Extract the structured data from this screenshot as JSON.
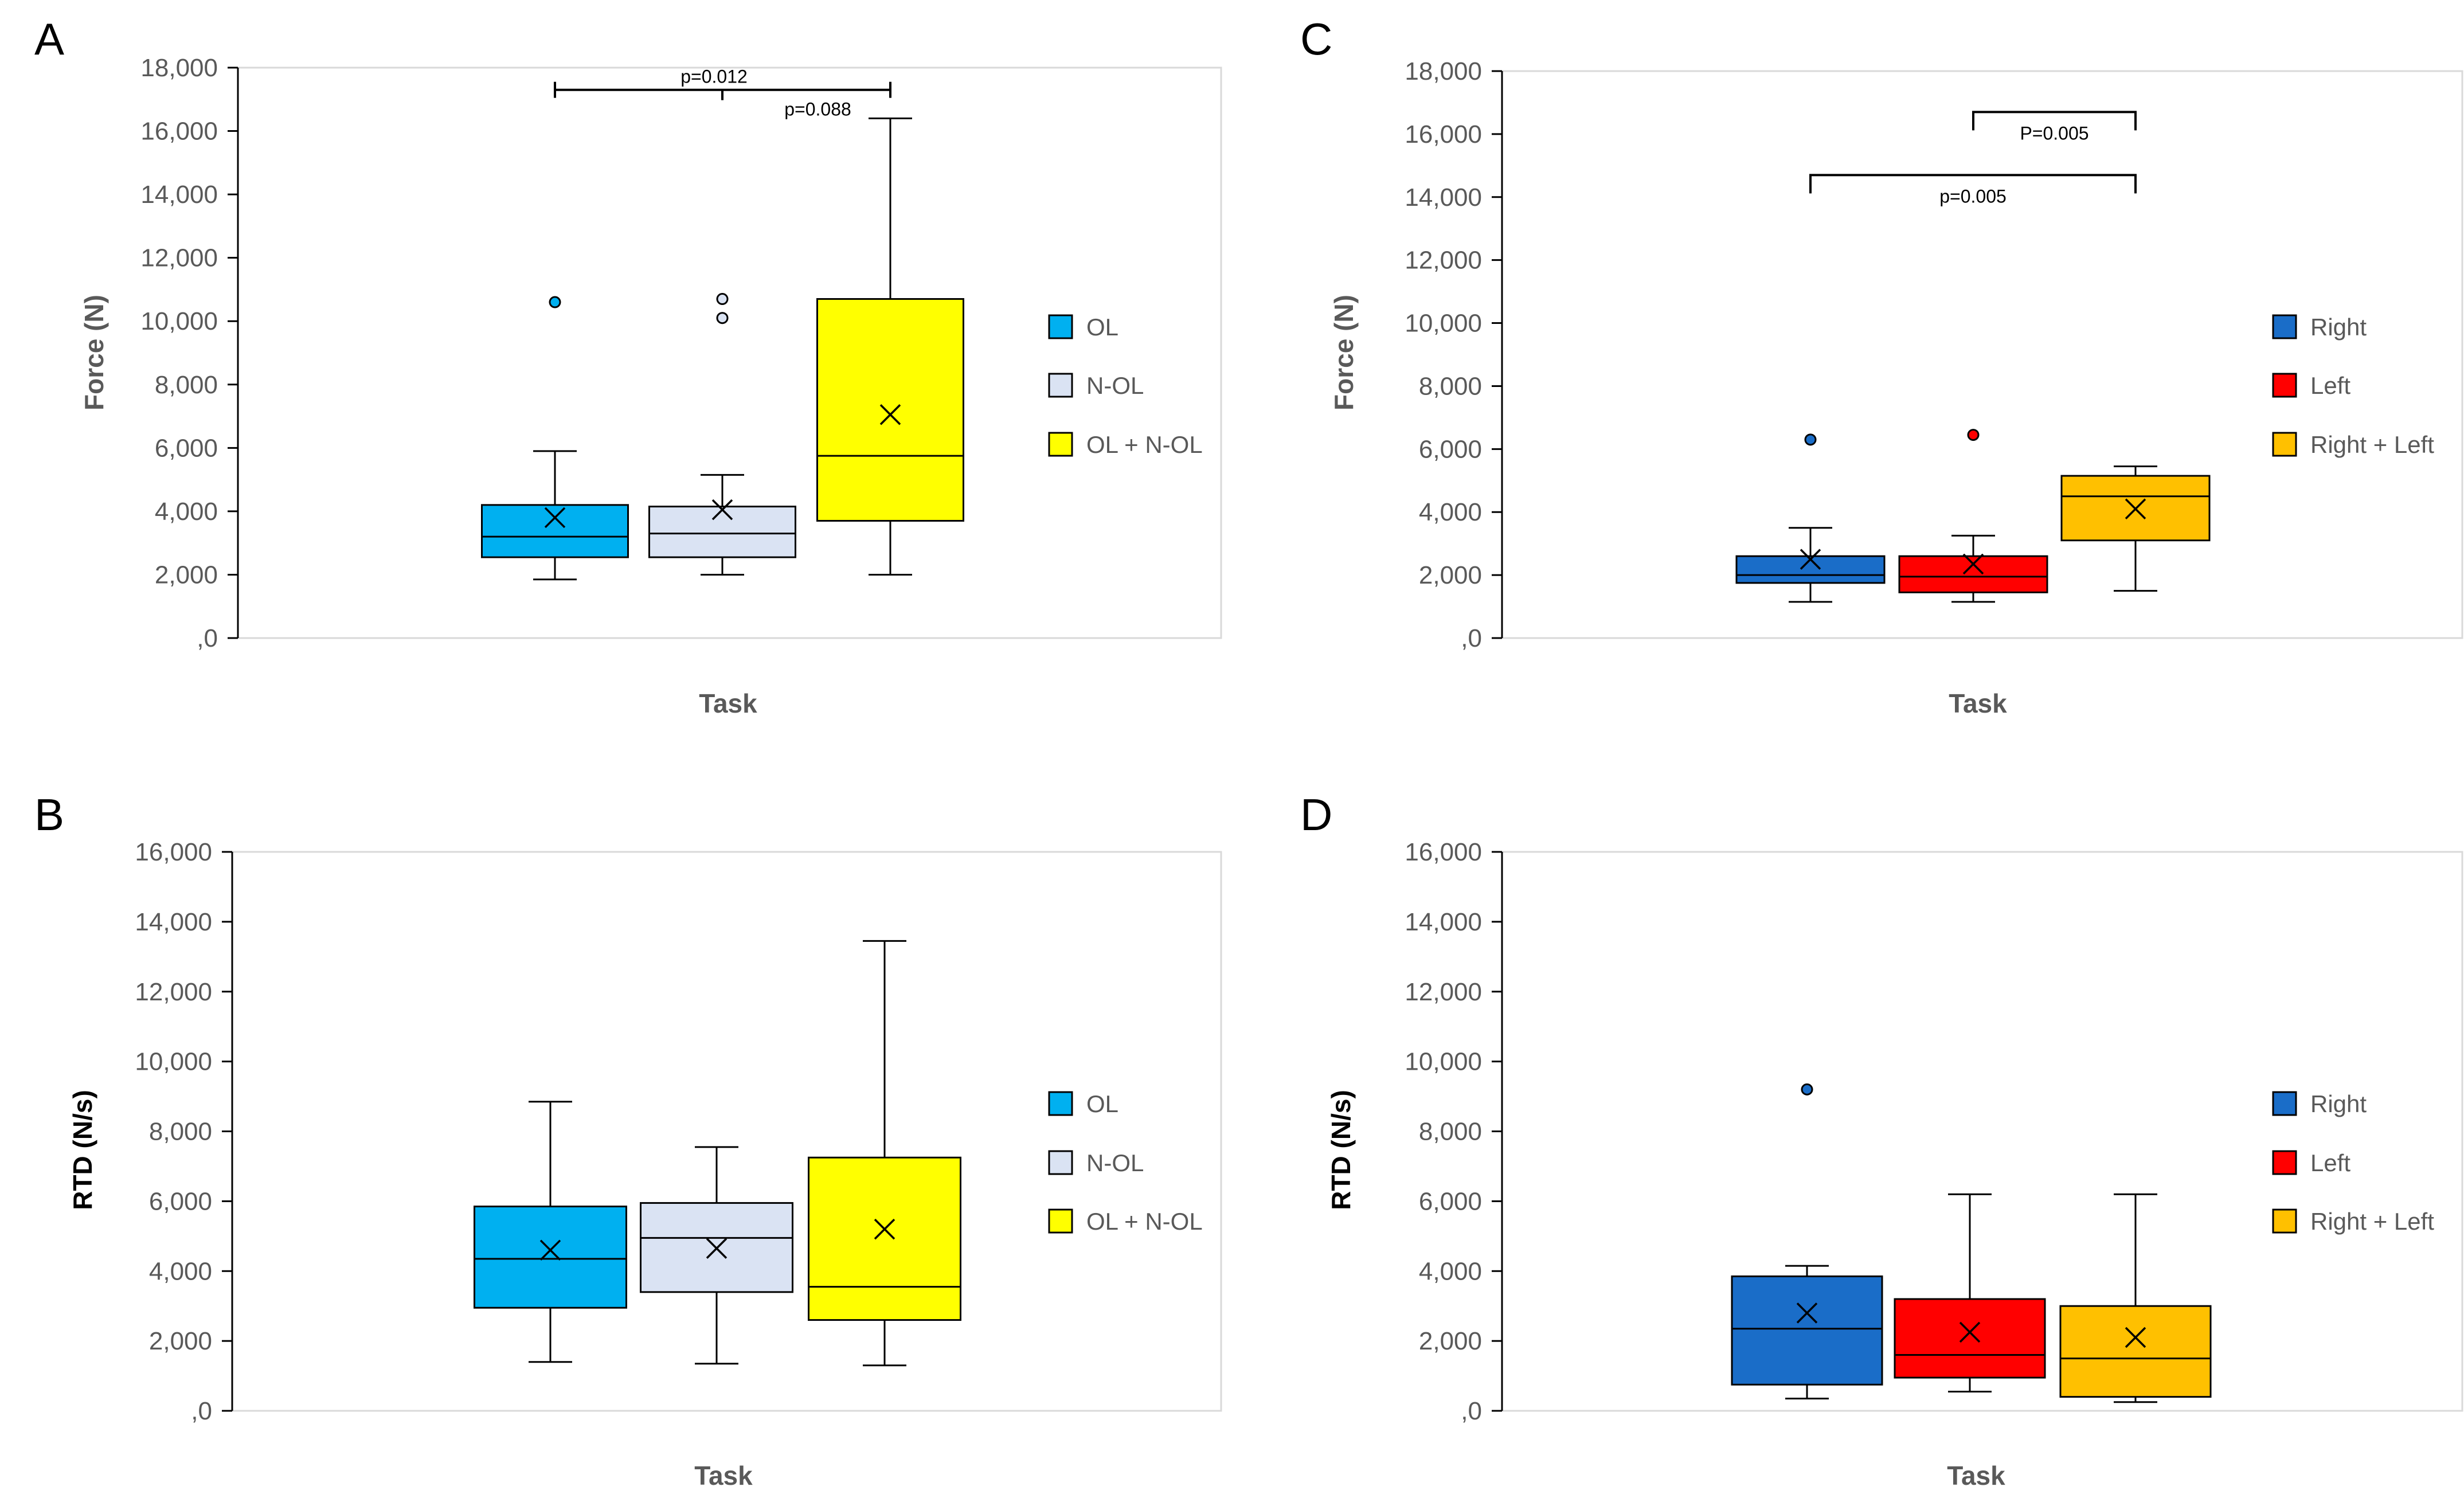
{
  "chart_data": [
    {
      "panel": "A",
      "type": "box",
      "xlabel": "Task",
      "ylabel": "Force (N)",
      "ylim": [
        0,
        18000
      ],
      "yticks": [
        ",0",
        "2,000",
        "4,000",
        "6,000",
        "8,000",
        "10,000",
        "12,000",
        "14,000",
        "16,000",
        "18,000"
      ],
      "grid": false,
      "legend_position": "right",
      "series": [
        {
          "name": "OL",
          "color": "#00b0f0",
          "min": 1850,
          "q1": 2550,
          "median": 3200,
          "q3": 4200,
          "max": 5900,
          "mean": 3800,
          "outliers": [
            10600
          ]
        },
        {
          "name": "N-OL",
          "color": "#dae3f3",
          "min": 2000,
          "q1": 2550,
          "median": 3300,
          "q3": 4150,
          "max": 5150,
          "mean": 4050,
          "outliers": [
            10100,
            10700
          ]
        },
        {
          "name": "OL + N-OL",
          "color": "#ffff00",
          "min": 2000,
          "q1": 3700,
          "median": 5750,
          "q3": 10700,
          "max": 16400,
          "mean": 7050,
          "outliers": []
        }
      ],
      "annotations": [
        {
          "text": "p=0.012",
          "from": 0,
          "to": 2,
          "y": 17300
        },
        {
          "text": "p=0.088",
          "from": 1,
          "to": 2,
          "y": 17300
        }
      ]
    },
    {
      "panel": "B",
      "type": "box",
      "xlabel": "Task",
      "ylabel": "RTD (N/s)",
      "ylim": [
        0,
        16000
      ],
      "yticks": [
        ",0",
        "2,000",
        "4,000",
        "6,000",
        "8,000",
        "10,000",
        "12,000",
        "14,000",
        "16,000"
      ],
      "grid": false,
      "legend_position": "right",
      "series": [
        {
          "name": "OL",
          "color": "#00b0f0",
          "min": 1400,
          "q1": 2950,
          "median": 4350,
          "q3": 5850,
          "max": 8850,
          "mean": 4600,
          "outliers": []
        },
        {
          "name": "N-OL",
          "color": "#dae3f3",
          "min": 1350,
          "q1": 3400,
          "median": 4950,
          "q3": 5950,
          "max": 7550,
          "mean": 4650,
          "outliers": []
        },
        {
          "name": "OL + N-OL",
          "color": "#ffff00",
          "min": 1300,
          "q1": 2600,
          "median": 3550,
          "q3": 7250,
          "max": 13450,
          "mean": 5200,
          "outliers": []
        }
      ],
      "annotations": []
    },
    {
      "panel": "C",
      "type": "box",
      "xlabel": "Task",
      "ylabel": "Force (N)",
      "ylim": [
        0,
        18000
      ],
      "yticks": [
        ",0",
        "2,000",
        "4,000",
        "6,000",
        "8,000",
        "10,000",
        "12,000",
        "14,000",
        "16,000",
        "18,000"
      ],
      "grid": false,
      "legend_position": "right",
      "series": [
        {
          "name": "Right",
          "color": "#1a6dc8",
          "min": 1150,
          "q1": 1750,
          "median": 2000,
          "q3": 2600,
          "max": 3500,
          "mean": 2500,
          "outliers": [
            6300
          ]
        },
        {
          "name": "Left",
          "color": "#ff0000",
          "min": 1150,
          "q1": 1450,
          "median": 1950,
          "q3": 2600,
          "max": 3250,
          "mean": 2350,
          "outliers": [
            6450
          ]
        },
        {
          "name": "Right + Left",
          "color": "#ffc000",
          "min": 1500,
          "q1": 3100,
          "median": 4500,
          "q3": 5150,
          "max": 5450,
          "mean": 4100,
          "outliers": []
        }
      ],
      "annotations": [
        {
          "text": "P=0.005",
          "from": 1,
          "to": 2,
          "y": 16700
        },
        {
          "text": "p=0.005",
          "from": 0,
          "to": 2,
          "y": 14700
        }
      ]
    },
    {
      "panel": "D",
      "type": "box",
      "xlabel": "Task",
      "ylabel": "RTD (N/s)",
      "ylim": [
        0,
        16000
      ],
      "yticks": [
        ",0",
        "2,000",
        "4,000",
        "6,000",
        "8,000",
        "10,000",
        "12,000",
        "14,000",
        "16,000"
      ],
      "grid": false,
      "legend_position": "right",
      "series": [
        {
          "name": "Right",
          "color": "#1a6dc8",
          "min": 350,
          "q1": 750,
          "median": 2350,
          "q3": 3850,
          "max": 4150,
          "mean": 2800,
          "outliers": [
            9200
          ]
        },
        {
          "name": "Left",
          "color": "#ff0000",
          "min": 550,
          "q1": 950,
          "median": 1600,
          "q3": 3200,
          "max": 6200,
          "mean": 2250,
          "outliers": []
        },
        {
          "name": "Right + Left",
          "color": "#ffc000",
          "min": 250,
          "q1": 400,
          "median": 1500,
          "q3": 3000,
          "max": 6200,
          "mean": 2100,
          "outliers": []
        }
      ],
      "annotations": []
    }
  ]
}
